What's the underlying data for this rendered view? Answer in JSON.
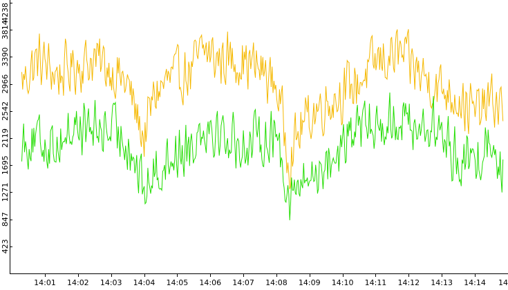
{
  "chart_data": {
    "type": "line",
    "x_unit": "time (HH:MM)",
    "x_tick_labels": [
      "14:01",
      "14:02",
      "14:03",
      "14:04",
      "14:05",
      "14:06",
      "14:07",
      "14:08",
      "14:09",
      "14:10",
      "14:11",
      "14:12",
      "14:13",
      "14:14",
      "14"
    ],
    "y_tick_labels": [
      "423",
      "847",
      "1271",
      "1695",
      "2119",
      "2542",
      "2966",
      "3390",
      "3814",
      "4238"
    ],
    "ylim": [
      0,
      4238
    ],
    "grid": false,
    "legend": "none",
    "x_start_minute": 0.3,
    "x_end_minute": 14.85,
    "samples_per_series": 520,
    "series": [
      {
        "color": "#f5b800",
        "keypoints": [
          [
            0.3,
            3000
          ],
          [
            0.8,
            3350
          ],
          [
            1.4,
            3100
          ],
          [
            1.9,
            3250
          ],
          [
            2.5,
            3350
          ],
          [
            3.0,
            3200
          ],
          [
            3.5,
            2950
          ],
          [
            4.0,
            2100
          ],
          [
            4.3,
            2800
          ],
          [
            4.8,
            3050
          ],
          [
            5.4,
            3150
          ],
          [
            5.8,
            3500
          ],
          [
            6.2,
            3350
          ],
          [
            6.9,
            3350
          ],
          [
            7.5,
            3200
          ],
          [
            8.0,
            2950
          ],
          [
            8.4,
            1800
          ],
          [
            8.8,
            2350
          ],
          [
            9.3,
            2600
          ],
          [
            9.9,
            2800
          ],
          [
            10.5,
            3000
          ],
          [
            11.0,
            3300
          ],
          [
            11.7,
            3450
          ],
          [
            12.3,
            3150
          ],
          [
            12.8,
            2950
          ],
          [
            13.4,
            2800
          ],
          [
            14.0,
            2500
          ],
          [
            14.5,
            2700
          ],
          [
            14.85,
            2600
          ]
        ]
      },
      {
        "color": "#22dd00",
        "keypoints": [
          [
            0.3,
            2100
          ],
          [
            0.8,
            2050
          ],
          [
            1.4,
            2050
          ],
          [
            1.9,
            2300
          ],
          [
            2.5,
            2250
          ],
          [
            3.0,
            2250
          ],
          [
            3.5,
            2100
          ],
          [
            4.0,
            1300
          ],
          [
            4.3,
            1550
          ],
          [
            4.8,
            1850
          ],
          [
            5.4,
            2000
          ],
          [
            5.8,
            2350
          ],
          [
            6.2,
            2250
          ],
          [
            6.9,
            2000
          ],
          [
            7.5,
            2100
          ],
          [
            8.0,
            2200
          ],
          [
            8.4,
            1200
          ],
          [
            8.8,
            1400
          ],
          [
            9.3,
            1650
          ],
          [
            9.9,
            1900
          ],
          [
            10.5,
            2300
          ],
          [
            11.0,
            2300
          ],
          [
            11.7,
            2450
          ],
          [
            12.3,
            2300
          ],
          [
            12.8,
            2300
          ],
          [
            13.4,
            1850
          ],
          [
            14.0,
            1700
          ],
          [
            14.5,
            2200
          ],
          [
            14.85,
            1600
          ]
        ]
      }
    ]
  }
}
